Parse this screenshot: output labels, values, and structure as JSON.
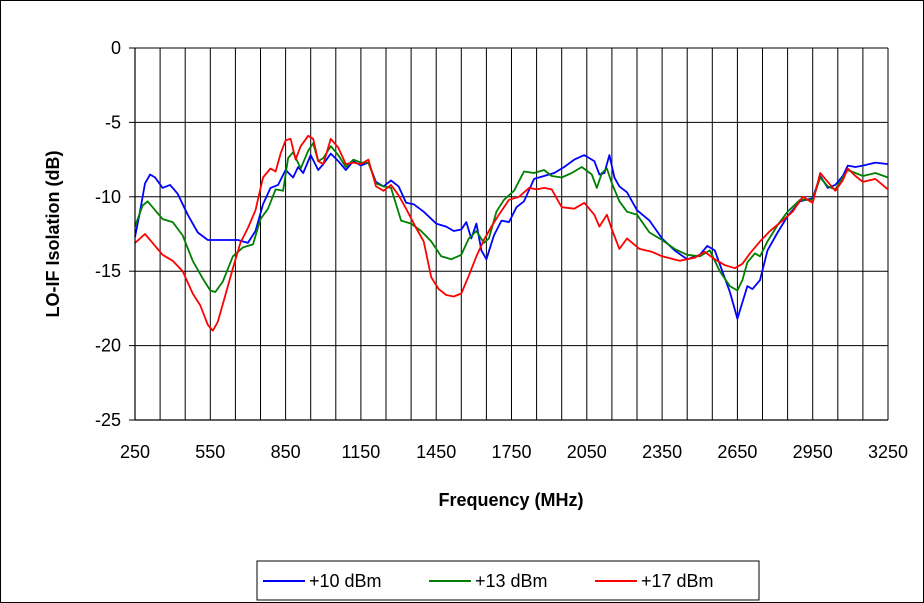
{
  "chart_data": {
    "type": "line",
    "title": "",
    "xlabel": "Frequency (MHz)",
    "ylabel": "LO-IF Isolation (dB)",
    "xlim": [
      250,
      3250
    ],
    "ylim": [
      -25,
      0
    ],
    "x_ticks": [
      250,
      550,
      850,
      1150,
      1450,
      1750,
      2050,
      2350,
      2650,
      2950,
      3250
    ],
    "x_tick_labels": [
      "250",
      "550",
      "850",
      "1150",
      "1450",
      "1750",
      "2050",
      "2350",
      "2650",
      "2950",
      "3250"
    ],
    "y_ticks": [
      0,
      -5,
      -10,
      -15,
      -20,
      -25
    ],
    "y_tick_labels": [
      "0",
      "-5",
      "-10",
      "-15",
      "-20",
      "-25"
    ],
    "grid": true,
    "legend_position": "bottom",
    "series": [
      {
        "name": "+10 dBm",
        "color": "#0000ff",
        "points": [
          [
            250,
            -12.7
          ],
          [
            270,
            -11
          ],
          [
            290,
            -9.1
          ],
          [
            310,
            -8.5
          ],
          [
            330,
            -8.7
          ],
          [
            360,
            -9.4
          ],
          [
            390,
            -9.2
          ],
          [
            420,
            -9.8
          ],
          [
            460,
            -11.2
          ],
          [
            500,
            -12.4
          ],
          [
            540,
            -12.9
          ],
          [
            580,
            -12.9
          ],
          [
            620,
            -12.9
          ],
          [
            660,
            -12.9
          ],
          [
            700,
            -13.1
          ],
          [
            730,
            -12.3
          ],
          [
            760,
            -10.5
          ],
          [
            790,
            -9.4
          ],
          [
            820,
            -9.2
          ],
          [
            850,
            -8.2
          ],
          [
            880,
            -8.7
          ],
          [
            900,
            -8.0
          ],
          [
            920,
            -8.4
          ],
          [
            950,
            -7.2
          ],
          [
            980,
            -8.2
          ],
          [
            1000,
            -7.8
          ],
          [
            1030,
            -7.1
          ],
          [
            1060,
            -7.6
          ],
          [
            1090,
            -8.2
          ],
          [
            1120,
            -7.6
          ],
          [
            1150,
            -7.9
          ],
          [
            1180,
            -7.7
          ],
          [
            1210,
            -9.0
          ],
          [
            1240,
            -9.3
          ],
          [
            1270,
            -8.9
          ],
          [
            1300,
            -9.3
          ],
          [
            1330,
            -10.4
          ],
          [
            1360,
            -10.5
          ],
          [
            1400,
            -11.0
          ],
          [
            1450,
            -11.8
          ],
          [
            1490,
            -12.0
          ],
          [
            1520,
            -12.3
          ],
          [
            1550,
            -12.2
          ],
          [
            1570,
            -11.7
          ],
          [
            1590,
            -12.8
          ],
          [
            1610,
            -11.8
          ],
          [
            1630,
            -13.6
          ],
          [
            1650,
            -14.2
          ],
          [
            1680,
            -12.6
          ],
          [
            1710,
            -11.6
          ],
          [
            1740,
            -11.7
          ],
          [
            1770,
            -10.7
          ],
          [
            1800,
            -10.3
          ],
          [
            1840,
            -8.8
          ],
          [
            1880,
            -8.6
          ],
          [
            1920,
            -8.4
          ],
          [
            1960,
            -8.0
          ],
          [
            2000,
            -7.5
          ],
          [
            2040,
            -7.2
          ],
          [
            2080,
            -7.6
          ],
          [
            2100,
            -8.5
          ],
          [
            2120,
            -8.4
          ],
          [
            2140,
            -7.2
          ],
          [
            2160,
            -8.7
          ],
          [
            2180,
            -9.3
          ],
          [
            2210,
            -9.7
          ],
          [
            2250,
            -10.9
          ],
          [
            2300,
            -11.6
          ],
          [
            2350,
            -12.8
          ],
          [
            2400,
            -13.6
          ],
          [
            2450,
            -14.2
          ],
          [
            2500,
            -13.9
          ],
          [
            2530,
            -13.3
          ],
          [
            2560,
            -13.6
          ],
          [
            2590,
            -15.0
          ],
          [
            2620,
            -16.4
          ],
          [
            2650,
            -18.2
          ],
          [
            2670,
            -17.1
          ],
          [
            2690,
            -16.0
          ],
          [
            2710,
            -16.2
          ],
          [
            2740,
            -15.6
          ],
          [
            2770,
            -13.6
          ],
          [
            2810,
            -12.4
          ],
          [
            2850,
            -11.3
          ],
          [
            2900,
            -10.3
          ],
          [
            2950,
            -10.1
          ],
          [
            2980,
            -8.6
          ],
          [
            3010,
            -9.4
          ],
          [
            3040,
            -9.2
          ],
          [
            3070,
            -8.6
          ],
          [
            3090,
            -7.9
          ],
          [
            3120,
            -8.0
          ],
          [
            3150,
            -7.9
          ],
          [
            3200,
            -7.7
          ],
          [
            3250,
            -7.8
          ]
        ]
      },
      {
        "name": "+13 dBm",
        "color": "#008000",
        "points": [
          [
            250,
            -12.0
          ],
          [
            280,
            -10.6
          ],
          [
            300,
            -10.3
          ],
          [
            330,
            -10.9
          ],
          [
            360,
            -11.5
          ],
          [
            400,
            -11.7
          ],
          [
            440,
            -12.6
          ],
          [
            480,
            -14.3
          ],
          [
            520,
            -15.5
          ],
          [
            550,
            -16.3
          ],
          [
            570,
            -16.4
          ],
          [
            600,
            -15.7
          ],
          [
            640,
            -14.0
          ],
          [
            680,
            -13.4
          ],
          [
            720,
            -13.2
          ],
          [
            750,
            -11.5
          ],
          [
            780,
            -10.8
          ],
          [
            810,
            -9.5
          ],
          [
            840,
            -9.6
          ],
          [
            860,
            -7.4
          ],
          [
            880,
            -7.0
          ],
          [
            910,
            -8.1
          ],
          [
            940,
            -6.9
          ],
          [
            960,
            -6.4
          ],
          [
            980,
            -7.6
          ],
          [
            1000,
            -7.4
          ],
          [
            1030,
            -6.6
          ],
          [
            1060,
            -7.2
          ],
          [
            1090,
            -8.0
          ],
          [
            1120,
            -7.5
          ],
          [
            1150,
            -7.7
          ],
          [
            1180,
            -7.7
          ],
          [
            1210,
            -9.1
          ],
          [
            1240,
            -9.3
          ],
          [
            1270,
            -9.4
          ],
          [
            1310,
            -11.6
          ],
          [
            1350,
            -11.8
          ],
          [
            1390,
            -12.3
          ],
          [
            1430,
            -13.0
          ],
          [
            1470,
            -14.0
          ],
          [
            1510,
            -14.2
          ],
          [
            1550,
            -13.9
          ],
          [
            1580,
            -12.8
          ],
          [
            1610,
            -12.3
          ],
          [
            1640,
            -13.1
          ],
          [
            1660,
            -12.8
          ],
          [
            1690,
            -11.0
          ],
          [
            1720,
            -10.2
          ],
          [
            1760,
            -9.6
          ],
          [
            1800,
            -8.3
          ],
          [
            1840,
            -8.4
          ],
          [
            1880,
            -8.2
          ],
          [
            1910,
            -8.6
          ],
          [
            1950,
            -8.7
          ],
          [
            1990,
            -8.4
          ],
          [
            2030,
            -8.0
          ],
          [
            2070,
            -8.5
          ],
          [
            2090,
            -9.4
          ],
          [
            2110,
            -8.4
          ],
          [
            2130,
            -8.1
          ],
          [
            2150,
            -9.1
          ],
          [
            2180,
            -10.3
          ],
          [
            2210,
            -11.0
          ],
          [
            2250,
            -11.2
          ],
          [
            2300,
            -12.4
          ],
          [
            2350,
            -12.9
          ],
          [
            2400,
            -13.5
          ],
          [
            2450,
            -13.9
          ],
          [
            2500,
            -14.0
          ],
          [
            2540,
            -13.6
          ],
          [
            2580,
            -15.0
          ],
          [
            2620,
            -16.0
          ],
          [
            2650,
            -16.3
          ],
          [
            2670,
            -15.6
          ],
          [
            2690,
            -14.4
          ],
          [
            2720,
            -13.8
          ],
          [
            2740,
            -14.0
          ],
          [
            2770,
            -13.0
          ],
          [
            2810,
            -11.9
          ],
          [
            2850,
            -11.0
          ],
          [
            2900,
            -10.2
          ],
          [
            2950,
            -10.2
          ],
          [
            2980,
            -8.7
          ],
          [
            3010,
            -9.3
          ],
          [
            3040,
            -9.5
          ],
          [
            3070,
            -8.7
          ],
          [
            3090,
            -8.2
          ],
          [
            3120,
            -8.4
          ],
          [
            3150,
            -8.6
          ],
          [
            3200,
            -8.4
          ],
          [
            3250,
            -8.7
          ]
        ]
      },
      {
        "name": "+17 dBm",
        "color": "#ff0000",
        "points": [
          [
            250,
            -13.1
          ],
          [
            270,
            -12.8
          ],
          [
            290,
            -12.5
          ],
          [
            320,
            -13.1
          ],
          [
            360,
            -13.9
          ],
          [
            400,
            -14.3
          ],
          [
            440,
            -15.0
          ],
          [
            480,
            -16.5
          ],
          [
            510,
            -17.3
          ],
          [
            540,
            -18.6
          ],
          [
            560,
            -19.0
          ],
          [
            580,
            -18.4
          ],
          [
            610,
            -16.6
          ],
          [
            640,
            -14.8
          ],
          [
            670,
            -13.1
          ],
          [
            700,
            -12.1
          ],
          [
            730,
            -10.9
          ],
          [
            760,
            -8.7
          ],
          [
            790,
            -8.1
          ],
          [
            810,
            -8.3
          ],
          [
            830,
            -7.1
          ],
          [
            850,
            -6.2
          ],
          [
            870,
            -6.1
          ],
          [
            890,
            -7.5
          ],
          [
            910,
            -6.6
          ],
          [
            940,
            -5.9
          ],
          [
            960,
            -6.1
          ],
          [
            980,
            -7.6
          ],
          [
            1000,
            -7.8
          ],
          [
            1030,
            -6.1
          ],
          [
            1060,
            -6.7
          ],
          [
            1090,
            -7.8
          ],
          [
            1120,
            -7.7
          ],
          [
            1150,
            -7.8
          ],
          [
            1180,
            -7.5
          ],
          [
            1210,
            -9.3
          ],
          [
            1240,
            -9.6
          ],
          [
            1270,
            -9.2
          ],
          [
            1300,
            -9.9
          ],
          [
            1330,
            -10.8
          ],
          [
            1370,
            -12.1
          ],
          [
            1400,
            -13.0
          ],
          [
            1430,
            -15.4
          ],
          [
            1460,
            -16.2
          ],
          [
            1490,
            -16.6
          ],
          [
            1520,
            -16.7
          ],
          [
            1550,
            -16.5
          ],
          [
            1580,
            -15.3
          ],
          [
            1610,
            -14.0
          ],
          [
            1640,
            -12.9
          ],
          [
            1670,
            -12.0
          ],
          [
            1700,
            -11.2
          ],
          [
            1740,
            -10.2
          ],
          [
            1780,
            -10.0
          ],
          [
            1820,
            -9.4
          ],
          [
            1850,
            -9.5
          ],
          [
            1880,
            -9.4
          ],
          [
            1910,
            -9.5
          ],
          [
            1950,
            -10.7
          ],
          [
            2000,
            -10.8
          ],
          [
            2040,
            -10.4
          ],
          [
            2080,
            -11.2
          ],
          [
            2100,
            -12.0
          ],
          [
            2130,
            -11.2
          ],
          [
            2150,
            -12.2
          ],
          [
            2180,
            -13.5
          ],
          [
            2210,
            -12.8
          ],
          [
            2260,
            -13.5
          ],
          [
            2310,
            -13.7
          ],
          [
            2350,
            -14.0
          ],
          [
            2420,
            -14.3
          ],
          [
            2480,
            -14.1
          ],
          [
            2520,
            -13.7
          ],
          [
            2560,
            -14.2
          ],
          [
            2600,
            -14.6
          ],
          [
            2640,
            -14.8
          ],
          [
            2670,
            -14.5
          ],
          [
            2700,
            -13.8
          ],
          [
            2740,
            -13.0
          ],
          [
            2780,
            -12.3
          ],
          [
            2830,
            -11.6
          ],
          [
            2870,
            -11.0
          ],
          [
            2910,
            -10.0
          ],
          [
            2950,
            -10.4
          ],
          [
            2980,
            -8.4
          ],
          [
            3010,
            -9.0
          ],
          [
            3040,
            -9.6
          ],
          [
            3070,
            -8.9
          ],
          [
            3090,
            -8.1
          ],
          [
            3120,
            -8.6
          ],
          [
            3150,
            -9.0
          ],
          [
            3200,
            -8.8
          ],
          [
            3250,
            -9.5
          ]
        ]
      }
    ]
  }
}
